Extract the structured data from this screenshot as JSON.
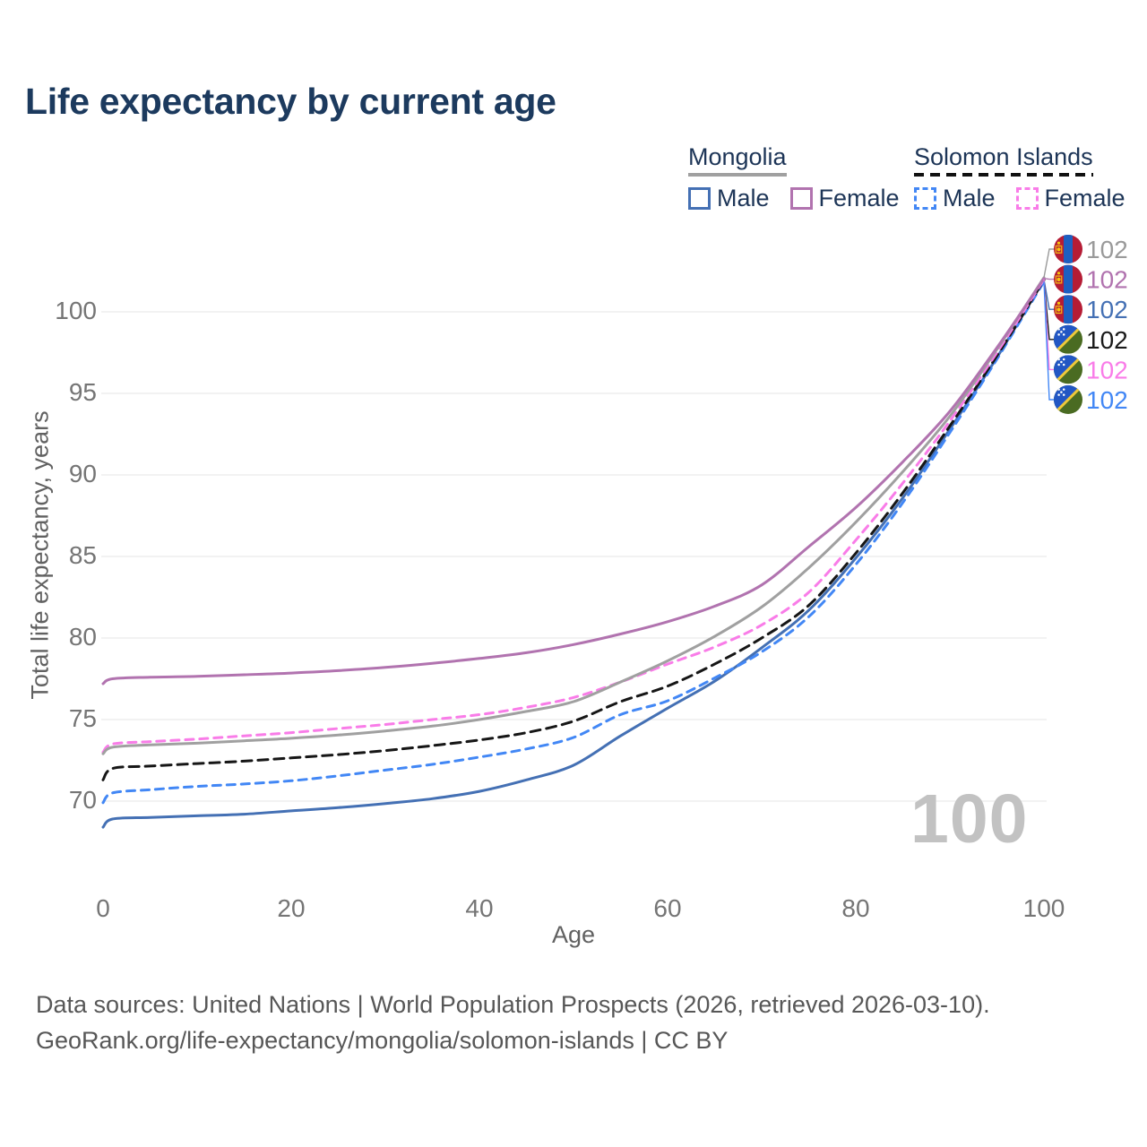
{
  "title": "Life expectancy by current age",
  "legend": {
    "groups": [
      {
        "name": "Mongolia",
        "line": {
          "color": "#a0a0a0",
          "style": "solid"
        },
        "items": [
          {
            "label": "Male",
            "color": "#4470b4",
            "style": "solid"
          },
          {
            "label": "Female",
            "color": "#b173af",
            "style": "solid"
          }
        ]
      },
      {
        "name": "Solomon Islands",
        "line": {
          "color": "#111111",
          "style": "dashed"
        },
        "items": [
          {
            "label": "Male",
            "color": "#4287f5",
            "style": "dashed"
          },
          {
            "label": "Female",
            "color": "#f97ce8",
            "style": "dashed"
          }
        ]
      }
    ]
  },
  "chart_data": {
    "type": "line",
    "title": "Life expectancy by current age",
    "xlabel": "Age",
    "ylabel": "Total life expectancy, years",
    "xlim": [
      0,
      100
    ],
    "ylim": [
      66.5,
      103
    ],
    "xticks": [
      0,
      20,
      40,
      60,
      80,
      100
    ],
    "yticks": [
      70,
      75,
      80,
      85,
      90,
      95,
      100
    ],
    "grid": "horizontal",
    "gridline_color": "#ebebeb",
    "ages": [
      0,
      1,
      5,
      10,
      15,
      20,
      25,
      30,
      35,
      40,
      45,
      50,
      55,
      60,
      65,
      70,
      75,
      80,
      85,
      90,
      95,
      100
    ],
    "series": [
      {
        "id": "mn_male",
        "country": "Mongolia",
        "sex": "Male",
        "color": "#4470b4",
        "dash": null,
        "values": [
          68.4,
          68.9,
          69.0,
          69.1,
          69.2,
          69.4,
          69.6,
          69.85,
          70.15,
          70.6,
          71.3,
          72.2,
          74.0,
          75.7,
          77.35,
          79.4,
          81.7,
          84.9,
          88.6,
          92.8,
          97.2,
          101.98
        ]
      },
      {
        "id": "sb_male",
        "country": "Solomon Islands",
        "sex": "Male",
        "color": "#4287f5",
        "dash": "9 7",
        "values": [
          69.9,
          70.5,
          70.7,
          70.9,
          71.05,
          71.25,
          71.55,
          71.9,
          72.25,
          72.7,
          73.2,
          73.9,
          75.3,
          76.15,
          77.55,
          79.15,
          81.3,
          84.5,
          88.3,
          92.6,
          97.1,
          101.85
        ]
      },
      {
        "id": "sb_both",
        "country": "Solomon Islands",
        "sex": "Both",
        "color": "#161616",
        "dash": "11 7",
        "values": [
          71.3,
          72.0,
          72.15,
          72.3,
          72.45,
          72.65,
          72.85,
          73.1,
          73.4,
          73.75,
          74.2,
          74.9,
          76.1,
          77.05,
          78.4,
          80.0,
          82.0,
          85.2,
          88.9,
          93.0,
          97.3,
          101.95
        ]
      },
      {
        "id": "sb_female",
        "country": "Solomon Islands",
        "sex": "Female",
        "color": "#f97ce8",
        "dash": "9 7",
        "values": [
          73.0,
          73.5,
          73.65,
          73.8,
          74.0,
          74.2,
          74.45,
          74.7,
          75.0,
          75.3,
          75.75,
          76.35,
          77.3,
          78.4,
          79.45,
          80.8,
          82.8,
          86.0,
          89.5,
          93.3,
          97.5,
          102.0
        ]
      },
      {
        "id": "mn_both",
        "country": "Mongolia",
        "sex": "Both",
        "color": "#a0a0a0",
        "dash": null,
        "values": [
          72.9,
          73.3,
          73.45,
          73.55,
          73.7,
          73.85,
          74.05,
          74.3,
          74.6,
          75.0,
          75.5,
          76.1,
          77.3,
          78.6,
          80.1,
          81.9,
          84.3,
          87.1,
          90.2,
          93.6,
          97.7,
          102.1
        ]
      },
      {
        "id": "mn_female",
        "country": "Mongolia",
        "sex": "Female",
        "color": "#b173af",
        "dash": null,
        "values": [
          77.2,
          77.5,
          77.6,
          77.65,
          77.75,
          77.85,
          78.0,
          78.2,
          78.45,
          78.75,
          79.1,
          79.6,
          80.25,
          81.0,
          81.95,
          83.25,
          85.6,
          88.0,
          90.8,
          93.9,
          97.8,
          102.05
        ]
      }
    ],
    "end_labels": [
      {
        "series": "mn_both",
        "flag": "mongolia",
        "value": "102",
        "color": "#9a9a9a"
      },
      {
        "series": "mn_female",
        "flag": "mongolia",
        "value": "102",
        "color": "#b173af"
      },
      {
        "series": "mn_male",
        "flag": "mongolia",
        "value": "102",
        "color": "#4470b4"
      },
      {
        "series": "sb_both",
        "flag": "solomon-islands",
        "value": "102",
        "color": "#1a1a1a"
      },
      {
        "series": "sb_female",
        "flag": "solomon-islands",
        "value": "102",
        "color": "#f97ce8"
      },
      {
        "series": "sb_male",
        "flag": "solomon-islands",
        "value": "102",
        "color": "#4287f5"
      }
    ],
    "legend_position": "top-right"
  },
  "watermark": "100",
  "footer": {
    "line1": "Data sources: United Nations | World Population Prospects (2026, retrieved 2026-03-10).",
    "line2": "GeoRank.org/life-expectancy/mongolia/solomon-islands | CC BY"
  }
}
